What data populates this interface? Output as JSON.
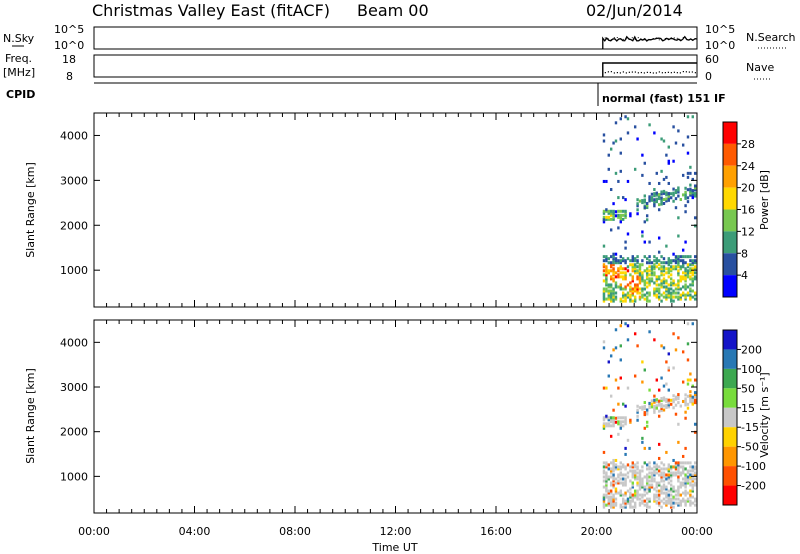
{
  "header": {
    "title": "Christmas Valley East (fitACF)",
    "beam": "Beam 00",
    "date": "02/Jun/2014"
  },
  "nsky_panel": {
    "left_label": "N.Sky",
    "left_ticks": [
      "10^5",
      "10^0"
    ],
    "right_ticks": [
      "10^5",
      "10^0"
    ],
    "right_label": "N.Search"
  },
  "freq_panel": {
    "left_label_1": "Freq.",
    "left_label_2": "[MHz]",
    "left_ticks": [
      "18",
      "8"
    ],
    "right_ticks": [
      "60",
      "0"
    ],
    "right_label": "Nave"
  },
  "cpid": {
    "label": "CPID",
    "mode": "normal (fast) 151 IF"
  },
  "chart_data": [
    {
      "type": "heatmap",
      "name": "Power",
      "ylabel": "Slant Range [km]",
      "xlabel": "Time UT",
      "y_ticks": [
        1000,
        2000,
        3000,
        4000
      ],
      "ylim": [
        180,
        4500
      ],
      "x_ticks": [
        "00:00",
        "04:00",
        "08:00",
        "12:00",
        "16:00",
        "20:00",
        "00:00"
      ],
      "xlim_hours": [
        0,
        24
      ],
      "data_start_hour": 20.25,
      "colorbar": {
        "label": "Power [dB]",
        "ticks": [
          "28",
          "24",
          "20",
          "16",
          "12",
          "8",
          "4"
        ],
        "colors": [
          "#ff0000",
          "#ff5a00",
          "#ffa000",
          "#ffd800",
          "#78c850",
          "#3c9c78",
          "#2850a0",
          "#0000ff"
        ]
      },
      "echo_bands": [
        {
          "range_km": [
            300,
            1250
          ],
          "power_db": 24
        },
        {
          "range_km": [
            2100,
            2350
          ],
          "power_db": 10
        },
        {
          "range_km": [
            2450,
            2800
          ],
          "power_db": 8
        }
      ]
    },
    {
      "type": "heatmap",
      "name": "Velocity",
      "ylabel": "Slant Range [km]",
      "xlabel": "Time UT",
      "y_ticks": [
        1000,
        2000,
        3000,
        4000
      ],
      "ylim": [
        180,
        4500
      ],
      "colorbar": {
        "label": "Velocity [m s⁻¹]",
        "ticks": [
          "200",
          "100",
          "50",
          "15",
          "-15",
          "-50",
          "-100",
          "-200"
        ],
        "colors": [
          "#1414c8",
          "#2878b4",
          "#3ca850",
          "#78dc3c",
          "#c8c8c8",
          "#ffd200",
          "#ff9600",
          "#ff5000",
          "#ff0000"
        ]
      }
    }
  ]
}
